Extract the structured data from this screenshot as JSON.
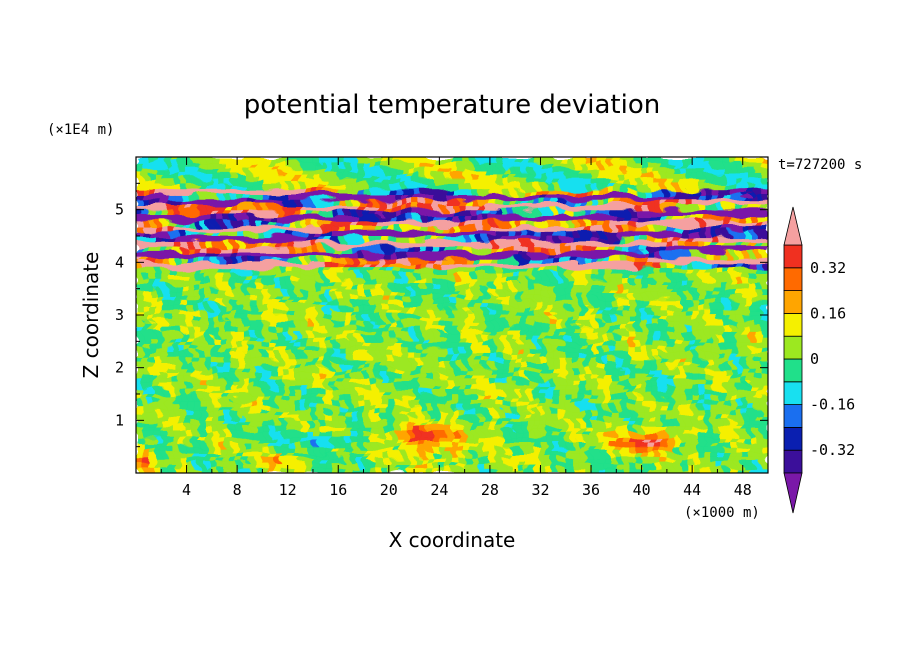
{
  "chart_data": {
    "type": "heatmap",
    "title": "potential temperature deviation",
    "xlabel": "X coordinate",
    "ylabel": "Z coordinate",
    "x_unit": "(×1000 m)",
    "y_unit": "(×1E4 m)",
    "time_label": "t=727200 s",
    "xlim": [
      0,
      50
    ],
    "ylim": [
      0,
      6
    ],
    "x_ticks": [
      4,
      8,
      12,
      16,
      20,
      24,
      28,
      32,
      36,
      40,
      44,
      48
    ],
    "x_tick_labels": [
      "4",
      "8",
      "12",
      "16",
      "20",
      "24",
      "28",
      "32",
      "36",
      "40",
      "44",
      "48"
    ],
    "y_ticks": [
      1,
      2,
      3,
      4,
      5
    ],
    "y_tick_labels": [
      "1",
      "2",
      "3",
      "4",
      "5"
    ],
    "colorbar": {
      "levels": [
        -0.4,
        -0.32,
        -0.24,
        -0.16,
        -0.08,
        0,
        0.08,
        0.16,
        0.24,
        0.32,
        0.4
      ],
      "labels": [
        "0.32",
        "0.16",
        "0",
        "-0.16",
        "-0.32"
      ],
      "label_values": [
        0.32,
        0.16,
        0,
        -0.16,
        -0.32
      ],
      "colors": [
        "#7a18a8",
        "#3b0f9a",
        "#0a1fb0",
        "#1a6ff0",
        "#18e0f0",
        "#20e08a",
        "#9ce820",
        "#f5f000",
        "#ffa500",
        "#ff6a00",
        "#f03020",
        "#f5a0a0"
      ]
    },
    "features": [
      {
        "kind": "horizontal band",
        "z_range": [
          3.9,
          5.4
        ],
        "x_range": [
          0,
          50
        ],
        "values": [
          -0.4,
          0.4
        ],
        "note": "alternating strong positive/negative layers"
      },
      {
        "kind": "warm blob",
        "x": 22.5,
        "z": 0.7,
        "value": 0.32
      },
      {
        "kind": "warm blob",
        "x": 40.5,
        "z": 0.65,
        "value": 0.36
      },
      {
        "kind": "cool band",
        "x_range": [
          13,
          17
        ],
        "z": 0.65,
        "value": -0.14
      },
      {
        "kind": "background noise",
        "z_range": [
          0,
          3.9
        ],
        "values": [
          -0.08,
          0.12
        ]
      }
    ]
  }
}
